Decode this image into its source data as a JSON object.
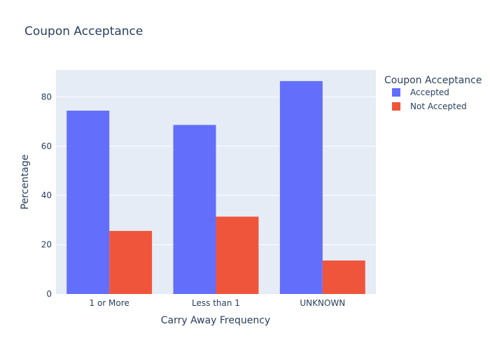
{
  "chart_data": {
    "type": "bar",
    "title": "Coupon Acceptance",
    "xlabel": "Carry Away Frequency",
    "ylabel": "Percentage",
    "categories": [
      "1 or More",
      "Less than 1",
      "UNKNOWN"
    ],
    "series": [
      {
        "name": "Accepted",
        "values": [
          74.4,
          68.6,
          86.4
        ],
        "color": "#636efa"
      },
      {
        "name": "Not Accepted",
        "values": [
          25.6,
          31.4,
          13.6
        ],
        "color": "#ef553b"
      }
    ],
    "ylim": [
      0,
      90.9
    ],
    "yticks": [
      0,
      20,
      40,
      60,
      80
    ],
    "grid": true,
    "plot_background": "#e5ecf6",
    "legend": {
      "title": "Coupon Acceptance",
      "placement": "right"
    }
  }
}
